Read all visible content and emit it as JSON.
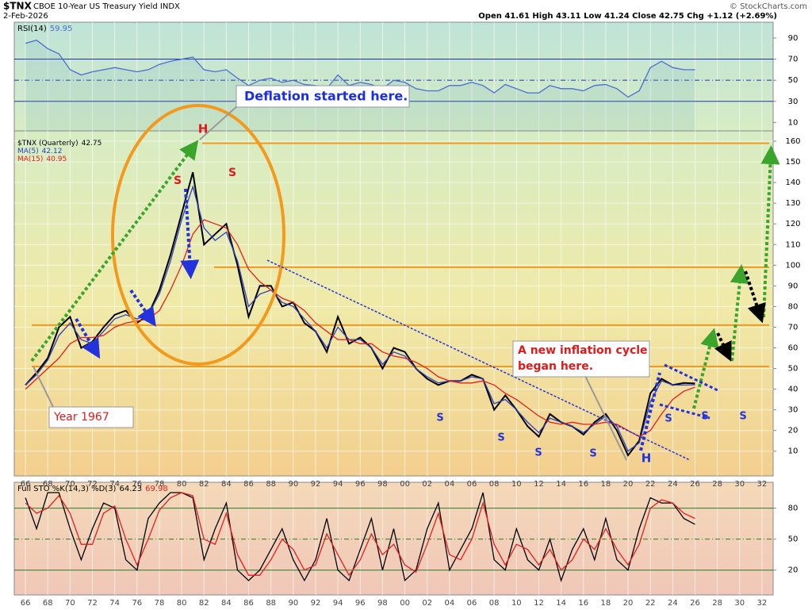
{
  "header": {
    "ticker": "$TNX",
    "name": "CBOE 10-Year US Treasury Yield INDX",
    "date": "2-Feb-2026",
    "quote": "Open 41.61  High 43.11  Low 41.24  Close 42.75  Chg +1.12 (+2.69%)",
    "source": "© StockCharts.com"
  },
  "chart_data": [
    {
      "type": "line",
      "title": "RSI(14)",
      "xlim": [
        1965,
        2033
      ],
      "ylim": [
        2,
        105
      ],
      "yticks": [
        90,
        70,
        50,
        30,
        10
      ],
      "levels": [
        70,
        50,
        30
      ],
      "x": [
        1966,
        1967,
        1968,
        1969,
        1970,
        1971,
        1972,
        1973,
        1974,
        1975,
        1976,
        1977,
        1978,
        1979,
        1980,
        1981,
        1982,
        1983,
        1984,
        1985,
        1986,
        1987,
        1988,
        1989,
        1990,
        1991,
        1992,
        1993,
        1994,
        1995,
        1996,
        1997,
        1998,
        1999,
        2000,
        2001,
        2002,
        2003,
        2004,
        2005,
        2006,
        2007,
        2008,
        2009,
        2010,
        2011,
        2012,
        2013,
        2014,
        2015,
        2016,
        2017,
        2018,
        2019,
        2020,
        2021,
        2022,
        2023,
        2024,
        2025,
        2026
      ],
      "series": [
        {
          "name": "RSI(14)",
          "color": "#4a6ed0",
          "values": [
            85,
            88,
            80,
            75,
            60,
            55,
            58,
            60,
            62,
            60,
            58,
            60,
            65,
            68,
            70,
            72,
            60,
            58,
            60,
            52,
            45,
            50,
            52,
            48,
            50,
            46,
            45,
            42,
            55,
            45,
            48,
            46,
            42,
            50,
            48,
            42,
            40,
            40,
            45,
            45,
            48,
            45,
            38,
            46,
            42,
            38,
            38,
            45,
            42,
            42,
            40,
            45,
            46,
            42,
            34,
            40,
            62,
            68,
            62,
            60,
            59.95
          ]
        }
      ]
    },
    {
      "type": "line",
      "title": "$TNX (Quarterly)",
      "xlim": [
        1965,
        2033
      ],
      "ylim": [
        -2,
        165
      ],
      "yticks": [
        10,
        20,
        30,
        40,
        50,
        60,
        70,
        80,
        90,
        100,
        110,
        120,
        130,
        140,
        150,
        160
      ],
      "levels": [
        159,
        99,
        71,
        51
      ],
      "xticks": [
        {
          "value": 1966,
          "label": "66"
        },
        {
          "value": 1968,
          "label": "68"
        },
        {
          "value": 1970,
          "label": "70"
        },
        {
          "value": 1972,
          "label": "72"
        },
        {
          "value": 1974,
          "label": "74"
        },
        {
          "value": 1976,
          "label": "76"
        },
        {
          "value": 1978,
          "label": "78"
        },
        {
          "value": 1980,
          "label": "80"
        },
        {
          "value": 1982,
          "label": "82"
        },
        {
          "value": 1984,
          "label": "84"
        },
        {
          "value": 1986,
          "label": "86"
        },
        {
          "value": 1988,
          "label": "88"
        },
        {
          "value": 1990,
          "label": "90"
        },
        {
          "value": 1992,
          "label": "92"
        },
        {
          "value": 1994,
          "label": "94"
        },
        {
          "value": 1996,
          "label": "96"
        },
        {
          "value": 1998,
          "label": "98"
        },
        {
          "value": 2000,
          "label": "00"
        },
        {
          "value": 2002,
          "label": "02"
        },
        {
          "value": 2004,
          "label": "04"
        },
        {
          "value": 2006,
          "label": "06"
        },
        {
          "value": 2008,
          "label": "08"
        },
        {
          "value": 2010,
          "label": "10"
        },
        {
          "value": 2012,
          "label": "12"
        },
        {
          "value": 2014,
          "label": "14"
        },
        {
          "value": 2016,
          "label": "16"
        },
        {
          "value": 2018,
          "label": "18"
        },
        {
          "value": 2020,
          "label": "20"
        },
        {
          "value": 2022,
          "label": "22"
        },
        {
          "value": 2024,
          "label": "24"
        },
        {
          "value": 2026,
          "label": "26"
        },
        {
          "value": 2028,
          "label": "28"
        },
        {
          "value": 2030,
          "label": "30"
        },
        {
          "value": 2032,
          "label": "32"
        }
      ],
      "x": [
        1966,
        1967,
        1968,
        1969,
        1970,
        1971,
        1972,
        1973,
        1974,
        1975,
        1976,
        1977,
        1978,
        1979,
        1980,
        1981,
        1982,
        1983,
        1984,
        1985,
        1986,
        1987,
        1988,
        1989,
        1990,
        1991,
        1992,
        1993,
        1994,
        1995,
        1996,
        1997,
        1998,
        1999,
        2000,
        2001,
        2002,
        2003,
        2004,
        2005,
        2006,
        2007,
        2008,
        2009,
        2010,
        2011,
        2012,
        2013,
        2014,
        2015,
        2016,
        2017,
        2018,
        2019,
        2020,
        2021,
        2022,
        2023,
        2024,
        2025,
        2026
      ],
      "series": [
        {
          "name": "$TNX (Quarterly)",
          "color": "#000000",
          "values": [
            42,
            48,
            55,
            70,
            75,
            60,
            63,
            70,
            76,
            78,
            72,
            76,
            88,
            105,
            125,
            145,
            110,
            115,
            120,
            100,
            75,
            90,
            90,
            80,
            82,
            72,
            68,
            58,
            75,
            62,
            65,
            60,
            50,
            60,
            58,
            50,
            45,
            42,
            44,
            44,
            47,
            45,
            30,
            37,
            30,
            22,
            17,
            28,
            24,
            22,
            18,
            24,
            28,
            20,
            8,
            15,
            38,
            45,
            42,
            43,
            42.75
          ]
        },
        {
          "name": "MA(5)",
          "color": "#2c3fbf",
          "values": [
            42,
            47,
            54,
            66,
            72,
            64,
            62,
            68,
            74,
            76,
            74,
            76,
            86,
            102,
            122,
            138,
            118,
            112,
            116,
            102,
            80,
            86,
            88,
            82,
            80,
            74,
            68,
            60,
            70,
            64,
            64,
            60,
            52,
            58,
            56,
            50,
            46,
            43,
            44,
            44,
            46,
            45,
            33,
            35,
            30,
            24,
            19,
            26,
            24,
            22,
            19,
            23,
            27,
            22,
            10,
            14,
            34,
            44,
            42,
            42,
            42.12
          ]
        },
        {
          "name": "MA(15)",
          "color": "#e02020",
          "values": [
            40,
            45,
            50,
            55,
            62,
            65,
            65,
            66,
            70,
            72,
            73,
            74,
            78,
            88,
            100,
            115,
            122,
            120,
            118,
            110,
            98,
            92,
            88,
            84,
            82,
            78,
            72,
            68,
            64,
            64,
            62,
            62,
            58,
            56,
            55,
            53,
            50,
            46,
            44,
            43,
            43,
            44,
            42,
            38,
            35,
            31,
            27,
            24,
            23,
            24,
            23,
            23,
            24,
            23,
            20,
            17,
            20,
            28,
            35,
            39,
            40.95
          ]
        }
      ],
      "annotations": [
        "Deflation started here.",
        "H",
        "S",
        "S",
        "Year 1967",
        "A new inflation cycle",
        "began here.",
        "S",
        "S",
        "S",
        "S",
        "S",
        "S",
        "S",
        "H"
      ]
    },
    {
      "type": "line",
      "title": "Full STO %K(14,3) %D(3)",
      "xlim": [
        1965,
        2033
      ],
      "ylim": [
        -4,
        105
      ],
      "yticks": [
        80,
        50,
        20
      ],
      "levels": [
        80,
        50,
        20
      ],
      "x": [
        1966,
        1967,
        1968,
        1969,
        1970,
        1971,
        1972,
        1973,
        1974,
        1975,
        1976,
        1977,
        1978,
        1979,
        1980,
        1981,
        1982,
        1983,
        1984,
        1985,
        1986,
        1987,
        1988,
        1989,
        1990,
        1991,
        1992,
        1993,
        1994,
        1995,
        1996,
        1997,
        1998,
        1999,
        2000,
        2001,
        2002,
        2003,
        2004,
        2005,
        2006,
        2007,
        2008,
        2009,
        2010,
        2011,
        2012,
        2013,
        2014,
        2015,
        2016,
        2017,
        2018,
        2019,
        2020,
        2021,
        2022,
        2023,
        2024,
        2025,
        2026
      ],
      "series": [
        {
          "name": "%K",
          "color": "#000000",
          "values": [
            90,
            60,
            95,
            95,
            60,
            30,
            60,
            85,
            80,
            30,
            20,
            70,
            85,
            95,
            95,
            90,
            30,
            60,
            85,
            20,
            10,
            20,
            40,
            60,
            30,
            10,
            30,
            70,
            20,
            10,
            40,
            70,
            20,
            60,
            10,
            20,
            60,
            85,
            20,
            40,
            60,
            95,
            30,
            20,
            60,
            30,
            20,
            50,
            10,
            40,
            60,
            30,
            70,
            30,
            20,
            60,
            90,
            85,
            85,
            70,
            64.23
          ]
        },
        {
          "name": "%D",
          "color": "#e02020",
          "values": [
            85,
            75,
            80,
            92,
            75,
            45,
            45,
            75,
            82,
            50,
            25,
            50,
            78,
            90,
            95,
            92,
            50,
            45,
            75,
            35,
            15,
            15,
            30,
            50,
            40,
            20,
            25,
            55,
            35,
            15,
            30,
            55,
            35,
            45,
            25,
            18,
            45,
            75,
            35,
            30,
            50,
            85,
            45,
            25,
            45,
            40,
            25,
            40,
            20,
            30,
            50,
            40,
            60,
            40,
            25,
            45,
            80,
            88,
            85,
            75,
            69.98
          ]
        }
      ]
    }
  ]
}
